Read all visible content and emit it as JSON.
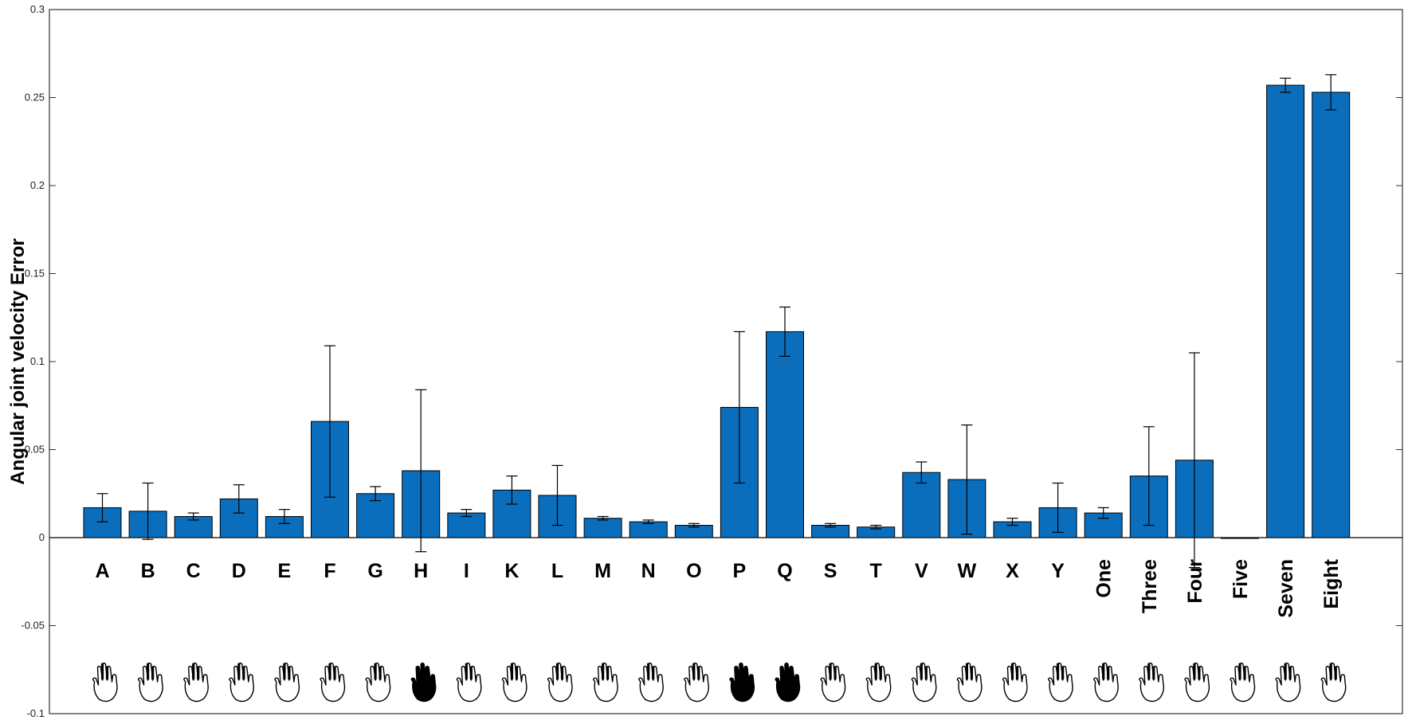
{
  "chart_data": {
    "type": "bar",
    "title": "",
    "xlabel": "",
    "ylabel": "Angular joint velocity Error",
    "ylim": [
      -0.1,
      0.3
    ],
    "yticks": [
      "-0.1",
      "-0.05",
      "0",
      "0.05",
      "0.1",
      "0.15",
      "0.2",
      "0.25",
      "0.3"
    ],
    "grid": false,
    "bar_color": "#0a6ebd",
    "categories": [
      "A",
      "B",
      "C",
      "D",
      "E",
      "F",
      "G",
      "H",
      "I",
      "K",
      "L",
      "M",
      "N",
      "O",
      "P",
      "Q",
      "S",
      "T",
      "V",
      "W",
      "X",
      "Y",
      "One",
      "Three",
      "Four",
      "Five",
      "Seven",
      "Eight"
    ],
    "values": [
      0.017,
      0.015,
      0.012,
      0.022,
      0.012,
      0.066,
      0.025,
      0.038,
      0.014,
      0.027,
      0.024,
      0.011,
      0.009,
      0.007,
      0.074,
      0.117,
      0.007,
      0.006,
      0.037,
      0.033,
      0.009,
      0.017,
      0.014,
      0.035,
      0.044,
      0.0,
      0.257,
      0.253
    ],
    "errors": [
      0.008,
      0.016,
      0.002,
      0.008,
      0.004,
      0.043,
      0.004,
      0.046,
      0.002,
      0.008,
      0.017,
      0.001,
      0.001,
      0.001,
      0.043,
      0.014,
      0.001,
      0.001,
      0.006,
      0.031,
      0.002,
      0.014,
      0.003,
      0.028,
      0.061,
      0.0,
      0.004,
      0.01
    ],
    "hand_icons": [
      "hand-icon",
      "hand-icon",
      "hand-icon",
      "hand-icon",
      "hand-icon",
      "hand-icon",
      "hand-icon",
      "filled-hand-icon",
      "hand-icon",
      "hand-icon",
      "hand-icon",
      "hand-icon",
      "hand-icon",
      "hand-icon",
      "filled-hand-icon",
      "filled-hand-icon",
      "hand-icon",
      "hand-icon",
      "hand-icon",
      "hand-icon",
      "hand-icon",
      "hand-icon",
      "hand-icon",
      "hand-icon",
      "hand-icon",
      "hand-icon",
      "hand-icon",
      "hand-icon"
    ]
  }
}
